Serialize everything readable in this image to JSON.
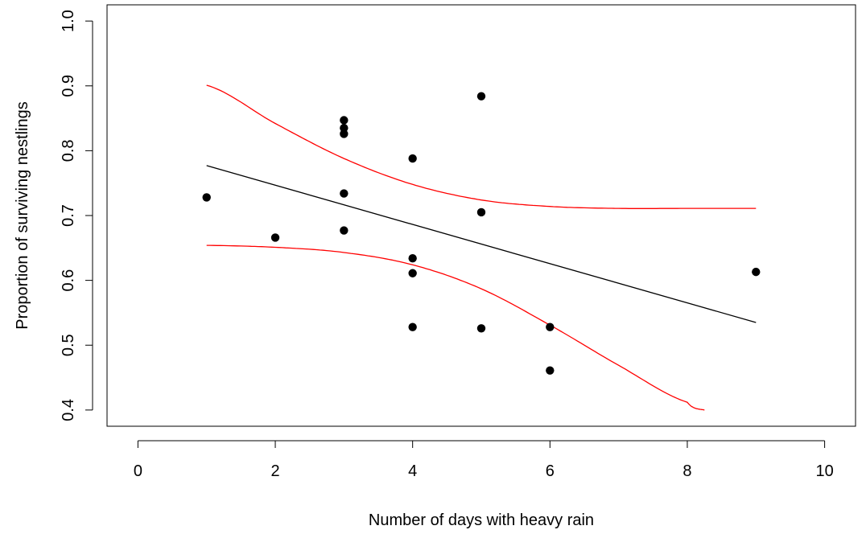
{
  "chart_data": {
    "type": "scatter",
    "title": "",
    "xlabel": "Number of days with heavy rain",
    "ylabel": "Proportion of surviving nestlings",
    "xlim": [
      -0.45,
      10.45
    ],
    "ylim": [
      0.375,
      1.025
    ],
    "x_ticks": [
      0,
      2,
      4,
      6,
      8,
      10
    ],
    "x_tick_labels": [
      "0",
      "2",
      "4",
      "6",
      "8",
      "10"
    ],
    "y_ticks": [
      0.4,
      0.5,
      0.6,
      0.7,
      0.8,
      0.9,
      1.0
    ],
    "y_tick_labels": [
      "0.4",
      "0.5",
      "0.6",
      "0.7",
      "0.8",
      "0.9",
      "1.0"
    ],
    "grid": false,
    "legend": "none",
    "points": {
      "color": "#000000",
      "x": [
        1,
        2,
        3,
        3,
        3,
        3,
        3,
        4,
        4,
        4,
        4,
        5,
        5,
        5,
        6,
        6,
        9
      ],
      "y": [
        0.728,
        0.666,
        0.847,
        0.835,
        0.826,
        0.734,
        0.677,
        0.788,
        0.634,
        0.611,
        0.528,
        0.884,
        0.705,
        0.526,
        0.528,
        0.461,
        0.613
      ]
    },
    "lines": [
      {
        "role": "fit",
        "color": "#000000",
        "x": [
          1,
          9
        ],
        "y": [
          0.777,
          0.535
        ]
      },
      {
        "role": "upper-ci",
        "color": "#ff0000",
        "x": [
          1,
          2,
          3,
          4,
          5,
          6,
          7,
          8,
          9
        ],
        "y": [
          0.901,
          0.842,
          0.788,
          0.748,
          0.724,
          0.714,
          0.711,
          0.711,
          0.711
        ]
      },
      {
        "role": "lower-ci",
        "color": "#ff0000",
        "x": [
          1,
          2,
          3,
          4,
          5,
          6,
          7,
          8,
          8.25
        ],
        "y": [
          0.654,
          0.651,
          0.643,
          0.624,
          0.587,
          0.531,
          0.469,
          0.412,
          0.4
        ]
      }
    ]
  }
}
